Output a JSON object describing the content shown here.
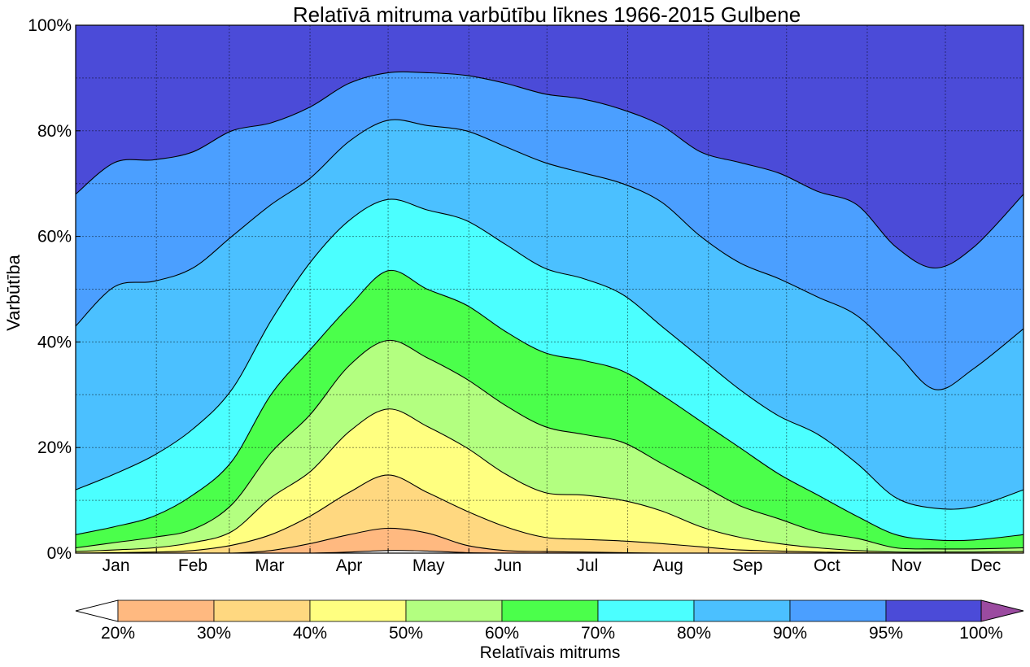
{
  "chart_data": {
    "type": "area",
    "title": "Relatīvā mitruma varbūtību līknes 1966-2015 Gulbene",
    "ylabel": "Varbūtība",
    "xlabel": "",
    "ylim": [
      0,
      100
    ],
    "yticks": [
      "0%",
      "20%",
      "40%",
      "60%",
      "80%",
      "100%"
    ],
    "ytick_values": [
      0,
      20,
      40,
      60,
      80,
      100
    ],
    "grid": true,
    "months": [
      "Jan",
      "Feb",
      "Mar",
      "Apr",
      "May",
      "Jun",
      "Jul",
      "Aug",
      "Sep",
      "Oct",
      "Nov",
      "Dec"
    ],
    "x_day_of_year": [
      1,
      16,
      31,
      46,
      61,
      76,
      91,
      106,
      121,
      136,
      151,
      166,
      181,
      196,
      211,
      226,
      241,
      256,
      271,
      286,
      301,
      316,
      331,
      346,
      365
    ],
    "series": [
      {
        "name": "20%",
        "values": [
          0,
          0,
          0,
          0,
          0,
          0,
          0,
          0.2,
          0.5,
          0.4,
          0.1,
          0,
          0,
          0,
          0,
          0,
          0,
          0,
          0,
          0,
          0,
          0,
          0,
          0,
          0
        ]
      },
      {
        "name": "30%",
        "values": [
          0,
          0,
          0,
          0,
          0,
          0.5,
          1.8,
          3.5,
          4.7,
          3.8,
          1.5,
          0.5,
          0.3,
          0.2,
          0.1,
          0,
          0,
          0,
          0,
          0,
          0,
          0,
          0,
          0,
          0
        ]
      },
      {
        "name": "40%",
        "values": [
          0,
          0.1,
          0.2,
          0.5,
          1.5,
          3.5,
          7,
          11.5,
          14.8,
          11.5,
          8,
          5,
          3,
          2.6,
          2.3,
          1.8,
          1.2,
          0.6,
          0.4,
          0.2,
          0.1,
          0,
          0,
          0,
          0
        ]
      },
      {
        "name": "50%",
        "values": [
          0.3,
          0.6,
          1,
          2,
          4.1,
          10.5,
          15.4,
          23,
          27.3,
          24,
          20,
          15,
          11.5,
          11,
          10,
          8,
          5,
          3,
          1.8,
          1,
          0.5,
          0.2,
          0.2,
          0.2,
          0.3
        ]
      },
      {
        "name": "60%",
        "values": [
          1,
          2,
          3,
          4.5,
          9.2,
          19,
          26.2,
          35.5,
          40.3,
          37,
          33,
          28,
          24,
          22.5,
          21,
          17,
          13,
          9,
          6.5,
          4,
          2.8,
          1,
          0.8,
          0.8,
          1
        ]
      },
      {
        "name": "70%",
        "values": [
          3.5,
          5,
          7,
          11,
          17.4,
          30,
          38.5,
          46.7,
          53.5,
          50,
          47,
          42,
          38,
          36.5,
          34.5,
          30,
          25,
          20,
          15,
          11,
          7,
          3.5,
          2.5,
          2.5,
          3.5
        ]
      },
      {
        "name": "80%",
        "values": [
          12,
          15,
          18.5,
          23.5,
          31,
          44,
          55,
          63,
          67,
          65,
          63,
          58.5,
          54,
          52,
          49,
          43,
          37,
          31,
          26,
          22.5,
          17,
          10.5,
          8.5,
          8.8,
          12
        ]
      },
      {
        "name": "90%",
        "values": [
          43,
          50.5,
          51.5,
          54,
          60,
          66,
          71,
          78,
          82,
          81,
          80,
          77,
          74,
          72,
          70,
          66.5,
          60,
          55,
          52,
          48.5,
          45,
          38,
          31,
          35,
          42.5
        ]
      },
      {
        "name": "95%",
        "values": [
          68,
          74,
          74.5,
          76,
          80,
          81.5,
          84.5,
          89,
          91,
          91,
          90.5,
          89,
          87,
          86,
          84,
          81,
          76,
          74,
          72,
          68.5,
          66,
          58,
          54,
          58,
          68
        ]
      }
    ],
    "colorbar": {
      "label": "Relatīvais mitrums",
      "ticks": [
        "20%",
        "30%",
        "40%",
        "50%",
        "60%",
        "70%",
        "80%",
        "90%",
        "95%",
        "100%"
      ],
      "under_color": "#ffffff",
      "over_color": "#9b4ba0",
      "colors": [
        "#ffb980",
        "#ffd880",
        "#ffff80",
        "#b3ff80",
        "#4bff4b",
        "#4bffff",
        "#4bc0ff",
        "#4b9fff",
        "#4b4bd8"
      ]
    }
  }
}
